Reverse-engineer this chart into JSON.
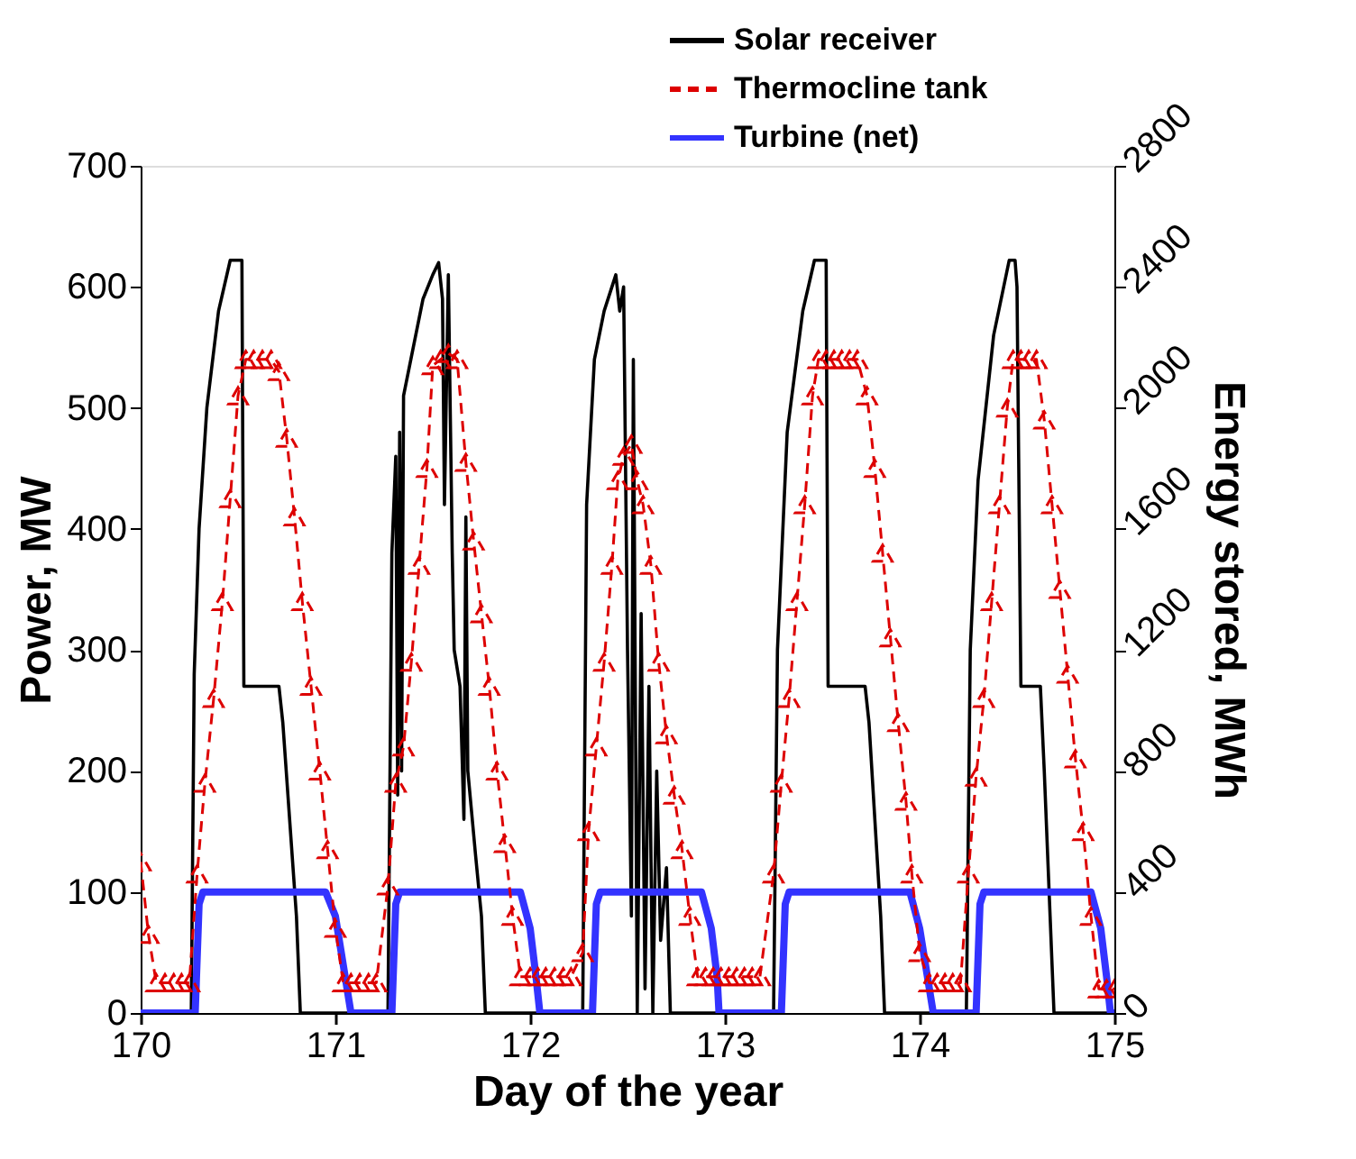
{
  "chart_data": {
    "type": "line",
    "xlabel": "Day of the year",
    "ylabel": "Power, MW",
    "y2label": "Energy stored, MWh",
    "xlim": [
      170,
      175
    ],
    "xticks": [
      170,
      171,
      172,
      173,
      174,
      175
    ],
    "ylim": [
      0,
      700
    ],
    "yticks": [
      0,
      100,
      200,
      300,
      400,
      500,
      600,
      700
    ],
    "y2lim": [
      0,
      2800
    ],
    "y2ticks": [
      0,
      400,
      800,
      1200,
      1600,
      2000,
      2400,
      2800
    ],
    "grid": false,
    "legend": "top right",
    "series": [
      {
        "name": "Solar receiver",
        "color": "#000000",
        "line_style": "solid",
        "marker": "none",
        "axis": "y",
        "x": [
          170.0,
          170.26,
          170.275,
          170.3,
          170.34,
          170.4,
          170.46,
          170.52,
          170.53,
          170.71,
          170.73,
          170.8,
          170.82,
          171.27,
          171.29,
          171.31,
          171.32,
          171.33,
          171.34,
          171.35,
          171.45,
          171.5,
          171.53,
          171.55,
          171.56,
          171.58,
          171.6,
          171.61,
          171.64,
          171.66,
          171.67,
          171.68,
          171.72,
          171.75,
          171.77,
          172.27,
          172.29,
          172.33,
          172.38,
          172.44,
          172.46,
          172.48,
          172.5,
          172.52,
          172.53,
          172.55,
          172.57,
          172.59,
          172.61,
          172.63,
          172.65,
          172.67,
          172.7,
          172.72,
          173.25,
          173.27,
          173.32,
          173.4,
          173.46,
          173.52,
          173.53,
          173.72,
          173.74,
          173.8,
          173.82,
          174.24,
          174.26,
          174.3,
          174.38,
          174.46,
          174.49,
          174.5,
          174.52,
          174.62,
          174.64,
          174.68,
          174.69,
          175.0
        ],
        "values": [
          0,
          0,
          280,
          400,
          500,
          580,
          622,
          622,
          270,
          270,
          240,
          80,
          0,
          0,
          380,
          460,
          180,
          480,
          200,
          510,
          590,
          610,
          620,
          590,
          420,
          610,
          380,
          300,
          270,
          160,
          410,
          200,
          130,
          80,
          0,
          0,
          420,
          540,
          580,
          610,
          580,
          600,
          300,
          80,
          540,
          0,
          330,
          20,
          270,
          0,
          200,
          60,
          120,
          0,
          0,
          300,
          480,
          580,
          622,
          622,
          270,
          270,
          240,
          80,
          0,
          0,
          300,
          440,
          560,
          622,
          622,
          600,
          270,
          270,
          200,
          40,
          0,
          0
        ]
      },
      {
        "name": "Thermocline tank",
        "color": "#dd0000",
        "line_style": "dashed",
        "marker": "triangle",
        "axis": "y2",
        "x": [
          170.0,
          170.04,
          170.08,
          170.125,
          170.17,
          170.21,
          170.25,
          170.29,
          170.33,
          170.375,
          170.42,
          170.46,
          170.5,
          170.54,
          170.58,
          170.625,
          170.67,
          170.71,
          170.75,
          170.79,
          170.83,
          170.875,
          170.92,
          170.96,
          171.0,
          171.04,
          171.08,
          171.125,
          171.17,
          171.21,
          171.27,
          171.31,
          171.35,
          171.39,
          171.43,
          171.47,
          171.5,
          171.54,
          171.58,
          171.625,
          171.67,
          171.71,
          171.75,
          171.79,
          171.83,
          171.87,
          171.91,
          171.95,
          172.0,
          172.04,
          172.08,
          172.125,
          172.17,
          172.21,
          172.27,
          172.3,
          172.34,
          172.38,
          172.42,
          172.45,
          172.48,
          172.52,
          172.55,
          172.58,
          172.62,
          172.66,
          172.7,
          172.74,
          172.78,
          172.82,
          172.86,
          172.9,
          172.94,
          172.98,
          173.02,
          173.06,
          173.1,
          173.14,
          173.18,
          173.25,
          173.29,
          173.33,
          173.37,
          173.41,
          173.45,
          173.48,
          173.52,
          173.56,
          173.6,
          173.64,
          173.68,
          173.73,
          173.77,
          173.81,
          173.85,
          173.89,
          173.93,
          173.96,
          174.0,
          174.05,
          174.09,
          174.13,
          174.17,
          174.21,
          174.25,
          174.29,
          174.33,
          174.37,
          174.41,
          174.45,
          174.48,
          174.52,
          174.56,
          174.6,
          174.64,
          174.68,
          174.72,
          174.76,
          174.8,
          174.84,
          174.88,
          174.92,
          174.96,
          175.0
        ],
        "values": [
          500,
          260,
          100,
          100,
          100,
          100,
          100,
          460,
          760,
          1040,
          1360,
          1700,
          2040,
          2160,
          2160,
          2160,
          2160,
          2120,
          1900,
          1640,
          1360,
          1080,
          800,
          540,
          280,
          100,
          100,
          100,
          100,
          100,
          420,
          760,
          880,
          1160,
          1480,
          1800,
          2140,
          2160,
          2180,
          2160,
          1820,
          1560,
          1320,
          1080,
          800,
          560,
          320,
          120,
          120,
          120,
          120,
          120,
          120,
          120,
          200,
          600,
          880,
          1160,
          1480,
          1760,
          1840,
          1880,
          1760,
          1680,
          1480,
          1160,
          920,
          720,
          540,
          320,
          120,
          120,
          120,
          120,
          120,
          120,
          120,
          120,
          120,
          460,
          760,
          1040,
          1360,
          1680,
          2040,
          2160,
          2160,
          2160,
          2160,
          2160,
          2160,
          2040,
          1800,
          1520,
          1240,
          960,
          700,
          460,
          200,
          100,
          100,
          100,
          100,
          100,
          460,
          780,
          1040,
          1360,
          1680,
          2000,
          2160,
          2160,
          2160,
          2160,
          1960,
          1680,
          1400,
          1120,
          840,
          600,
          320,
          80,
          80,
          80
        ]
      },
      {
        "name": "Turbine (net)",
        "color": "#3333ff",
        "line_style": "solid",
        "marker": "none",
        "axis": "y",
        "x": [
          170.0,
          170.28,
          170.3,
          170.32,
          170.95,
          171.0,
          171.05,
          171.08,
          171.29,
          171.31,
          171.33,
          171.95,
          172.0,
          172.03,
          172.05,
          172.32,
          172.34,
          172.36,
          172.88,
          172.93,
          172.96,
          172.97,
          173.29,
          173.31,
          173.33,
          173.95,
          174.0,
          174.04,
          174.07,
          174.29,
          174.31,
          174.33,
          174.88,
          174.93,
          174.96,
          174.98,
          175.0
        ],
        "values": [
          0,
          0,
          90,
          100,
          100,
          80,
          30,
          0,
          0,
          90,
          100,
          100,
          70,
          30,
          0,
          0,
          90,
          100,
          100,
          70,
          30,
          0,
          0,
          90,
          100,
          100,
          70,
          30,
          0,
          0,
          90,
          100,
          100,
          70,
          30,
          0,
          0
        ]
      }
    ]
  }
}
